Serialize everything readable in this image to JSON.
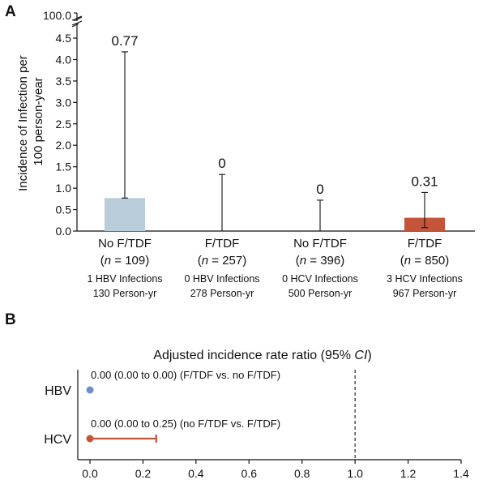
{
  "chart_data": [
    {
      "panel": "A",
      "type": "bar",
      "ylabel_lines": [
        "Incidence of Infection per",
        "100 person-year"
      ],
      "yticks": [
        "0.0",
        "0.5",
        "1.0",
        "1.5",
        "2.0",
        "2.5",
        "3.0",
        "3.5",
        "4.0",
        "4.5"
      ],
      "ybreak_tick": "100.0",
      "ylim": [
        0,
        4.5
      ],
      "categories": [
        {
          "name": "No F/TDF",
          "n_text": "n",
          "n_value": " = 109",
          "line1": "1 HBV Infections",
          "line2": "130 Person-yr",
          "value": 0.77,
          "upper": 4.18,
          "lower": 0.77,
          "label": "0.77",
          "color": "#b9ccd9"
        },
        {
          "name": "F/TDF",
          "n_text": "n",
          "n_value": " = 257",
          "line1": "0 HBV Infections",
          "line2": "278 Person-yr",
          "value": 0,
          "upper": 1.32,
          "lower": 0,
          "label": "0",
          "color": "#b9ccd9"
        },
        {
          "name": "No F/TDF",
          "n_text": "n",
          "n_value": " = 396",
          "line1": "0 HCV Infections",
          "line2": "500 Person-yr",
          "value": 0,
          "upper": 0.72,
          "lower": 0,
          "label": "0",
          "color": "#c4553a"
        },
        {
          "name": "F/TDF",
          "n_text": "n",
          "n_value": " = 850",
          "line1": "3 HCV Infections",
          "line2": "967 Person-yr",
          "value": 0.31,
          "upper": 0.9,
          "lower": 0.08,
          "label": "0.31",
          "color": "#c4553a"
        }
      ]
    },
    {
      "panel": "B",
      "type": "scatter",
      "title": "Adjusted incidence rate ratio (95% CI)",
      "title_pre": "Adjusted incidence rate ratio (95% ",
      "title_ci": "CI",
      "title_post": ")",
      "xlim": [
        0,
        1.4
      ],
      "xticks": [
        "0.0",
        "0.2",
        "0.4",
        "0.6",
        "0.8",
        "1.0",
        "1.2",
        "1.4"
      ],
      "reference_line": 1.0,
      "rows": [
        {
          "name": "HBV",
          "estimate": 0.0,
          "lower": 0.0,
          "upper": 0.0,
          "annotation": "0.00 (0.00 to 0.00) (F/TDF vs. no F/TDF)",
          "color": "#6f8fc9"
        },
        {
          "name": "HCV",
          "estimate": 0.0,
          "lower": 0.0,
          "upper": 0.25,
          "annotation": "0.00 (0.00 to 0.25) (no F/TDF vs. F/TDF)",
          "color": "#c4553a"
        }
      ]
    }
  ],
  "panels": {
    "a": "A",
    "b": "B"
  }
}
